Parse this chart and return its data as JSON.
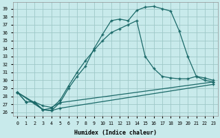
{
  "xlabel": "Humidex (Indice chaleur)",
  "bg_color": "#c8eaea",
  "grid_color": "#a0c8c8",
  "line_color": "#1a6868",
  "xlim": [
    -0.5,
    23.5
  ],
  "ylim": [
    25.5,
    39.8
  ],
  "xticks": [
    0,
    1,
    2,
    3,
    4,
    5,
    6,
    7,
    8,
    9,
    10,
    11,
    12,
    13,
    14,
    15,
    16,
    17,
    18,
    19,
    20,
    21,
    22,
    23
  ],
  "yticks": [
    26,
    27,
    28,
    29,
    30,
    31,
    32,
    33,
    34,
    35,
    36,
    37,
    38,
    39
  ],
  "curve1_x": [
    0,
    1,
    2,
    3,
    4,
    5,
    6,
    7,
    8,
    9,
    10,
    11,
    12,
    13,
    14,
    15,
    16,
    17,
    18,
    19,
    20,
    21,
    22,
    23
  ],
  "curve1_y": [
    28.5,
    27.3,
    27.3,
    26.3,
    26.2,
    27.2,
    29.0,
    30.5,
    31.8,
    34.0,
    35.8,
    37.5,
    37.7,
    37.5,
    38.8,
    39.2,
    39.3,
    39.0,
    38.7,
    36.2,
    33.0,
    30.5,
    30.0,
    29.8
  ],
  "curve2_x": [
    0,
    2,
    3,
    4,
    5,
    6,
    7,
    8,
    9,
    10,
    11,
    12,
    13,
    14,
    15,
    16,
    17,
    18,
    19,
    20,
    21,
    22,
    23
  ],
  "curve2_y": [
    28.5,
    27.2,
    26.3,
    26.5,
    27.5,
    29.3,
    31.0,
    32.5,
    33.8,
    35.0,
    36.0,
    36.5,
    37.0,
    37.5,
    33.0,
    31.5,
    30.5,
    30.3,
    30.2,
    30.2,
    30.5,
    30.3,
    30.0
  ],
  "curve3_x": [
    0,
    1,
    2,
    3,
    4,
    5,
    23
  ],
  "curve3_y": [
    28.5,
    27.3,
    27.3,
    26.8,
    26.6,
    27.2,
    29.8
  ],
  "curve4_x": [
    0,
    3,
    4,
    5,
    23
  ],
  "curve4_y": [
    28.5,
    26.3,
    26.2,
    26.5,
    29.5
  ],
  "marker_size": 3.0
}
